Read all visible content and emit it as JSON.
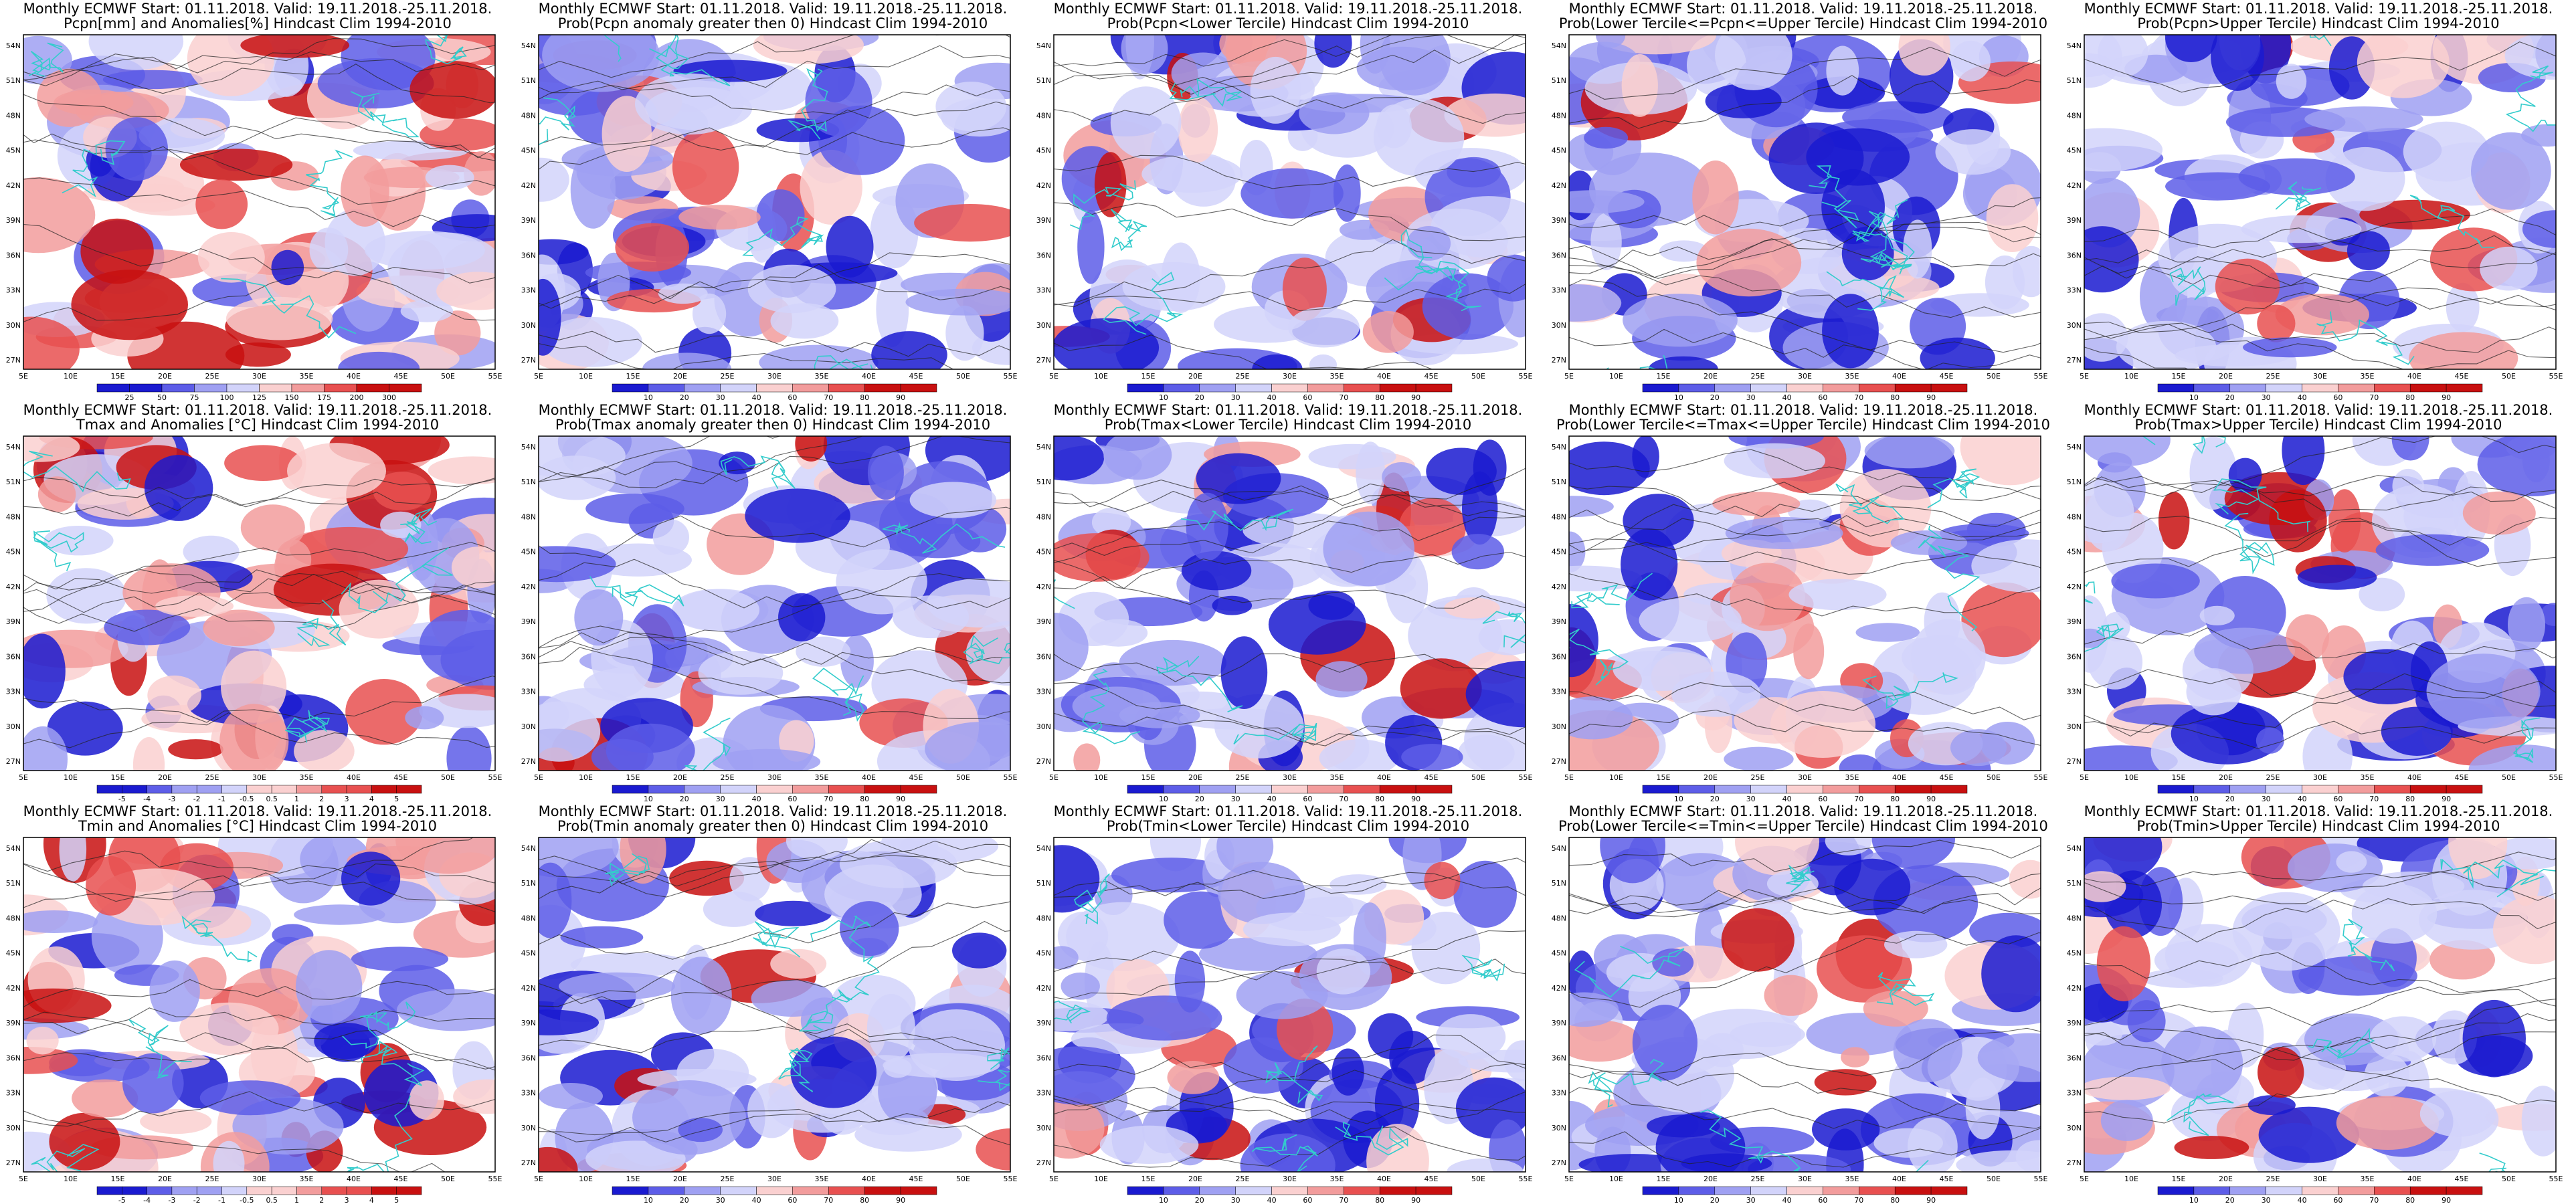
{
  "figure": {
    "header_line1": "Monthly ECMWF Start: 01.11.2018. Valid: 19.11.2018.-25.11.2018.",
    "lat_ticks": [
      "54N",
      "51N",
      "48N",
      "45N",
      "42N",
      "39N",
      "36N",
      "33N",
      "30N",
      "27N"
    ],
    "lon_ticks": [
      "5E",
      "10E",
      "15E",
      "20E",
      "25E",
      "30E",
      "35E",
      "40E",
      "45E",
      "50E",
      "55E"
    ],
    "panels": [
      {
        "line2": "Pcpn[mm] and Anomalies[%] Hindcast Clim 1994-2010",
        "scheme": "anom",
        "cb_labels": [
          "25",
          "50",
          "75",
          "100",
          "125",
          "150",
          "175",
          "200",
          "300"
        ]
      },
      {
        "line2": "Prob(Pcpn anomaly greater then 0) Hindcast Clim 1994-2010",
        "scheme": "prob",
        "cb_labels": [
          "10",
          "20",
          "30",
          "40",
          "60",
          "70",
          "80",
          "90"
        ]
      },
      {
        "line2": "Prob(Pcpn<Lower Tercile) Hindcast Clim 1994-2010",
        "scheme": "prob",
        "cb_labels": [
          "10",
          "20",
          "30",
          "40",
          "60",
          "70",
          "80",
          "90"
        ]
      },
      {
        "line2": "Prob(Lower Tercile<=Pcpn<=Upper Tercile) Hindcast Clim 1994-2010",
        "scheme": "prob",
        "cb_labels": [
          "10",
          "20",
          "30",
          "40",
          "60",
          "70",
          "80",
          "90"
        ]
      },
      {
        "line2": "Prob(Pcpn>Upper Tercile) Hindcast Clim 1994-2010",
        "scheme": "prob",
        "cb_labels": [
          "10",
          "20",
          "30",
          "40",
          "60",
          "70",
          "80",
          "90"
        ]
      },
      {
        "line2": "Tmax and Anomalies [°C] Hindcast Clim 1994-2010",
        "scheme": "anom",
        "cb_labels": [
          "-5",
          "-4",
          "-3",
          "-2",
          "-1",
          "-0.5",
          "0.5",
          "1",
          "2",
          "3",
          "4",
          "5"
        ]
      },
      {
        "line2": "Prob(Tmax anomaly greater then 0) Hindcast Clim 1994-2010",
        "scheme": "prob",
        "cb_labels": [
          "10",
          "20",
          "30",
          "40",
          "60",
          "70",
          "80",
          "90"
        ]
      },
      {
        "line2": "Prob(Tmax<Lower Tercile) Hindcast Clim 1994-2010",
        "scheme": "prob",
        "cb_labels": [
          "10",
          "20",
          "30",
          "40",
          "60",
          "70",
          "80",
          "90"
        ]
      },
      {
        "line2": "Prob(Lower Tercile<=Tmax<=Upper Tercile) Hindcast Clim 1994-2010",
        "scheme": "prob",
        "cb_labels": [
          "10",
          "20",
          "30",
          "40",
          "60",
          "70",
          "80",
          "90"
        ]
      },
      {
        "line2": "Prob(Tmax>Upper Tercile) Hindcast Clim 1994-2010",
        "scheme": "prob",
        "cb_labels": [
          "10",
          "20",
          "30",
          "40",
          "60",
          "70",
          "80",
          "90"
        ]
      },
      {
        "line2": "Tmin and Anomalies [°C] Hindcast Clim 1994-2010",
        "scheme": "anom",
        "cb_labels": [
          "-5",
          "-4",
          "-3",
          "-2",
          "-1",
          "-0.5",
          "0.5",
          "1",
          "2",
          "3",
          "4",
          "5"
        ]
      },
      {
        "line2": "Prob(Tmin anomaly greater then 0) Hindcast Clim 1994-2010",
        "scheme": "prob",
        "cb_labels": [
          "10",
          "20",
          "30",
          "40",
          "60",
          "70",
          "80",
          "90"
        ]
      },
      {
        "line2": "Prob(Tmin<Lower Tercile) Hindcast Clim 1994-2010",
        "scheme": "prob",
        "cb_labels": [
          "10",
          "20",
          "30",
          "40",
          "60",
          "70",
          "80",
          "90"
        ]
      },
      {
        "line2": "Prob(Lower Tercile<=Tmin<=Upper Tercile) Hindcast Clim 1994-2010",
        "scheme": "prob",
        "cb_labels": [
          "10",
          "20",
          "30",
          "40",
          "60",
          "70",
          "80",
          "90"
        ]
      },
      {
        "line2": "Prob(Tmin>Upper Tercile) Hindcast Clim 1994-2010",
        "scheme": "prob",
        "cb_labels": [
          "10",
          "20",
          "30",
          "40",
          "60",
          "70",
          "80",
          "90"
        ]
      }
    ]
  },
  "colors": {
    "deep_blue": "#1a1ad0",
    "mid_blue": "#5d5de8",
    "light_blue": "#9fa0f2",
    "pale_blue": "#d2d3fa",
    "white": "#ffffff",
    "pale_red": "#fad0d0",
    "light_red": "#f29c9c",
    "mid_red": "#e85050",
    "deep_red": "#c81010",
    "coast": "#33cccc",
    "contour": "#222222"
  }
}
